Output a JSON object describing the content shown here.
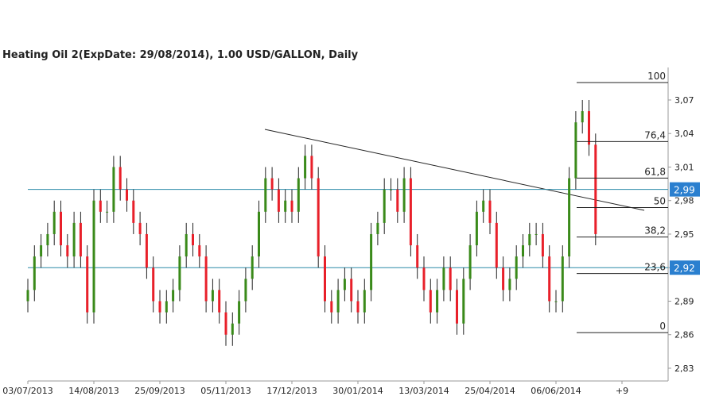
{
  "chart_data": {
    "type": "candlestick",
    "title": "Heating Oil 2(ExpDate: 29/08/2014), 1.00 USD/GALLON, Daily",
    "categories": [
      "03/07/2013",
      null,
      null,
      null,
      null,
      null,
      null,
      null,
      null,
      null,
      "14/08/2013",
      null,
      null,
      null,
      null,
      null,
      null,
      null,
      null,
      null,
      "25/09/2013",
      null,
      null,
      null,
      null,
      null,
      null,
      null,
      null,
      null,
      "05/11/2013",
      null,
      null,
      null,
      null,
      null,
      null,
      null,
      null,
      null,
      "17/12/2013",
      null,
      null,
      null,
      null,
      null,
      null,
      null,
      null,
      null,
      "30/01/2014",
      null,
      null,
      null,
      null,
      null,
      null,
      null,
      null,
      null,
      "13/03/2014",
      null,
      null,
      null,
      null,
      null,
      null,
      null,
      null,
      null,
      "25/04/2014",
      null,
      null,
      null,
      null,
      null,
      null,
      null,
      null,
      null,
      "06/06/2014",
      null,
      null,
      null,
      null,
      null,
      null,
      null,
      null,
      null,
      "+9"
    ],
    "open": [
      2.89,
      2.9,
      2.93,
      2.94,
      2.95,
      2.97,
      2.94,
      2.93,
      2.96,
      2.93,
      2.88,
      2.98,
      2.97,
      2.97,
      3.01,
      2.99,
      2.98,
      2.96,
      2.95,
      2.92,
      2.89,
      2.88,
      2.89,
      2.9,
      2.93,
      2.95,
      2.94,
      2.93,
      2.89,
      2.9,
      2.88,
      2.86,
      2.87,
      2.89,
      2.91,
      2.93,
      2.97,
      3.0,
      2.99,
      2.97,
      2.98,
      2.97,
      3.0,
      3.02,
      3.0,
      2.93,
      2.89,
      2.88,
      2.9,
      2.91,
      2.89,
      2.88,
      2.9,
      2.95,
      2.96,
      2.99,
      2.99,
      2.97,
      3.0,
      2.94,
      2.92,
      2.9,
      2.88,
      2.9,
      2.92,
      2.9,
      2.87,
      2.91,
      2.94,
      2.97,
      2.98,
      2.96,
      2.92,
      2.9,
      2.91,
      2.93,
      2.94,
      2.95,
      2.95,
      2.93,
      2.89,
      2.89,
      2.93,
      3.0,
      3.05,
      3.06,
      3.03,
      null,
      null,
      null,
      null
    ],
    "high": [
      2.91,
      2.94,
      2.95,
      2.96,
      2.98,
      2.98,
      2.95,
      2.97,
      2.97,
      2.94,
      2.99,
      2.99,
      2.98,
      3.02,
      3.02,
      3.0,
      2.99,
      2.97,
      2.96,
      2.93,
      2.9,
      2.9,
      2.91,
      2.94,
      2.96,
      2.96,
      2.95,
      2.94,
      2.91,
      2.91,
      2.89,
      2.88,
      2.9,
      2.92,
      2.94,
      2.98,
      3.01,
      3.01,
      3.0,
      2.99,
      2.99,
      3.01,
      3.03,
      3.03,
      3.01,
      2.94,
      2.9,
      2.91,
      2.92,
      2.92,
      2.9,
      2.91,
      2.96,
      2.97,
      3.0,
      3.0,
      3.0,
      3.01,
      3.01,
      2.95,
      2.93,
      2.91,
      2.91,
      2.93,
      2.93,
      2.91,
      2.92,
      2.95,
      2.98,
      2.99,
      2.99,
      2.97,
      2.93,
      2.92,
      2.94,
      2.95,
      2.96,
      2.96,
      2.96,
      2.94,
      2.9,
      2.94,
      3.01,
      3.06,
      3.07,
      3.07,
      3.04,
      null,
      null,
      null,
      null
    ],
    "low": [
      2.88,
      2.89,
      2.92,
      2.93,
      2.94,
      2.93,
      2.92,
      2.92,
      2.92,
      2.87,
      2.87,
      2.96,
      2.96,
      2.96,
      2.98,
      2.97,
      2.95,
      2.94,
      2.91,
      2.88,
      2.87,
      2.87,
      2.88,
      2.89,
      2.92,
      2.93,
      2.92,
      2.88,
      2.88,
      2.87,
      2.85,
      2.85,
      2.86,
      2.88,
      2.9,
      2.92,
      2.96,
      2.98,
      2.96,
      2.96,
      2.96,
      2.96,
      2.99,
      2.99,
      2.92,
      2.88,
      2.87,
      2.87,
      2.89,
      2.88,
      2.87,
      2.87,
      2.89,
      2.94,
      2.95,
      2.98,
      2.96,
      2.96,
      2.93,
      2.91,
      2.89,
      2.87,
      2.87,
      2.89,
      2.89,
      2.86,
      2.86,
      2.9,
      2.93,
      2.96,
      2.95,
      2.91,
      2.89,
      2.89,
      2.9,
      2.92,
      2.93,
      2.94,
      2.92,
      2.88,
      2.88,
      2.88,
      2.92,
      2.99,
      3.04,
      3.02,
      2.94,
      null,
      null,
      null,
      null
    ],
    "close": [
      2.9,
      2.93,
      2.94,
      2.95,
      2.97,
      2.94,
      2.93,
      2.96,
      2.93,
      2.88,
      2.98,
      2.97,
      2.97,
      3.01,
      2.99,
      2.98,
      2.96,
      2.95,
      2.92,
      2.89,
      2.88,
      2.89,
      2.9,
      2.93,
      2.95,
      2.94,
      2.93,
      2.89,
      2.9,
      2.88,
      2.86,
      2.87,
      2.89,
      2.91,
      2.93,
      2.97,
      3.0,
      2.99,
      2.97,
      2.98,
      2.97,
      3.0,
      3.02,
      3.0,
      2.93,
      2.89,
      2.88,
      2.9,
      2.91,
      2.89,
      2.88,
      2.9,
      2.95,
      2.96,
      2.99,
      2.99,
      2.97,
      3.0,
      2.94,
      2.92,
      2.9,
      2.88,
      2.9,
      2.92,
      2.9,
      2.87,
      2.91,
      2.94,
      2.97,
      2.98,
      2.96,
      2.92,
      2.9,
      2.91,
      2.93,
      2.94,
      2.95,
      2.95,
      2.93,
      2.89,
      2.89,
      2.93,
      3.0,
      3.05,
      3.06,
      3.03,
      2.95,
      null,
      null,
      null,
      null
    ],
    "up_color": "#3a8a1a",
    "down_color": "#e8202a",
    "ylim": [
      2.8186,
      3.0991
    ],
    "yticks": [
      {
        "value": 2.83,
        "label": "2,83"
      },
      {
        "value": 2.86,
        "label": "2,86"
      },
      {
        "value": 2.89,
        "label": "2,89"
      },
      {
        "value": 2.92,
        "label": "2,92"
      },
      {
        "value": 2.95,
        "label": "2,95"
      },
      {
        "value": 2.98,
        "label": "2,98"
      },
      {
        "value": 3.01,
        "label": "3,01"
      },
      {
        "value": 3.04,
        "label": "3,04"
      },
      {
        "value": 3.07,
        "label": "3,07"
      }
    ],
    "price_lines": [
      {
        "value": 2.99,
        "label": "2,99"
      },
      {
        "value": 2.92,
        "label": "2,92"
      }
    ],
    "fib_levels": [
      {
        "value": 100,
        "label": "100"
      },
      {
        "value": 76.4,
        "label": "76,4"
      },
      {
        "value": 61.8,
        "label": "61,8"
      },
      {
        "value": 50,
        "label": "50"
      },
      {
        "value": 38.2,
        "label": "38,2"
      },
      {
        "value": 23.6,
        "label": "23,6"
      },
      {
        "value": 0,
        "label": "0"
      }
    ]
  }
}
